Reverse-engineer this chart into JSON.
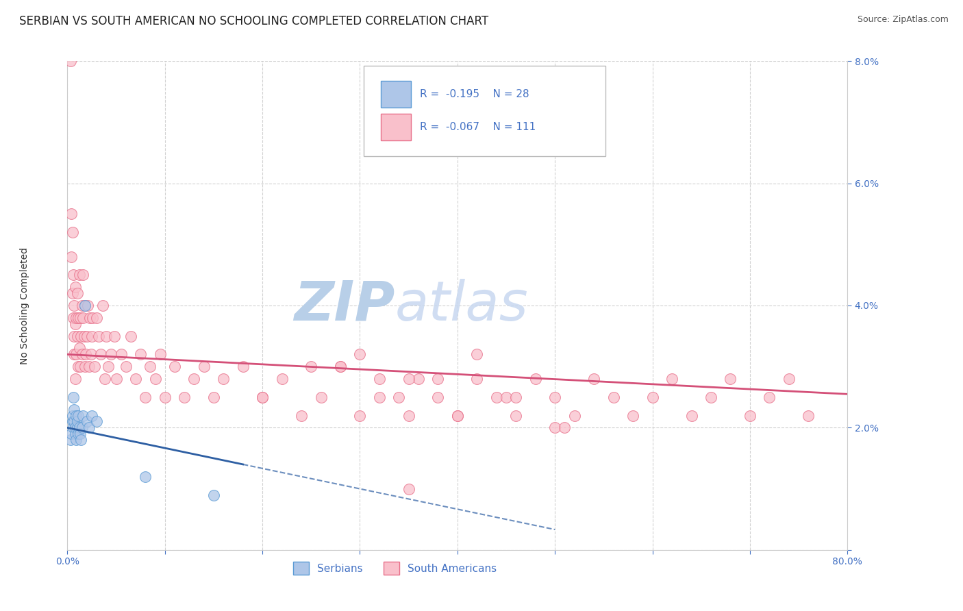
{
  "title": "SERBIAN VS SOUTH AMERICAN NO SCHOOLING COMPLETED CORRELATION CHART",
  "source_text": "Source: ZipAtlas.com",
  "ylabel": "No Schooling Completed",
  "xlim": [
    0.0,
    0.8
  ],
  "ylim": [
    0.0,
    0.08
  ],
  "xticks": [
    0.0,
    0.1,
    0.2,
    0.3,
    0.4,
    0.5,
    0.6,
    0.7,
    0.8
  ],
  "yticks": [
    0.0,
    0.02,
    0.04,
    0.06,
    0.08
  ],
  "xtick_labels": [
    "0.0%",
    "",
    "",
    "",
    "",
    "",
    "",
    "",
    "80.0%"
  ],
  "ytick_labels_right": [
    "",
    "2.0%",
    "4.0%",
    "6.0%",
    "8.0%"
  ],
  "serbian_color": "#aec6e8",
  "south_american_color": "#f9c0cb",
  "serbian_edge_color": "#5b9bd5",
  "south_american_edge_color": "#e8708a",
  "trend_serbian_color": "#2e5fa3",
  "trend_sa_color": "#d45078",
  "watermark_color": "#cddaee",
  "serbian_r": -0.195,
  "serbian_n": 28,
  "sa_r": -0.067,
  "sa_n": 111,
  "sa_trend_y0": 0.032,
  "sa_trend_y1": 0.0255,
  "ser_trend_y0": 0.02,
  "ser_trend_solid_x1": 0.18,
  "ser_trend_dash_x1": 0.5,
  "serbian_x": [
    0.003,
    0.004,
    0.005,
    0.005,
    0.006,
    0.006,
    0.007,
    0.007,
    0.008,
    0.008,
    0.009,
    0.009,
    0.01,
    0.01,
    0.011,
    0.011,
    0.012,
    0.013,
    0.014,
    0.015,
    0.016,
    0.018,
    0.02,
    0.022,
    0.025,
    0.03,
    0.08,
    0.15
  ],
  "serbian_y": [
    0.018,
    0.019,
    0.021,
    0.022,
    0.02,
    0.025,
    0.021,
    0.023,
    0.019,
    0.02,
    0.018,
    0.022,
    0.02,
    0.021,
    0.019,
    0.022,
    0.02,
    0.019,
    0.018,
    0.02,
    0.022,
    0.04,
    0.021,
    0.02,
    0.022,
    0.021,
    0.012,
    0.009
  ],
  "sa_x": [
    0.003,
    0.004,
    0.004,
    0.005,
    0.005,
    0.006,
    0.006,
    0.007,
    0.007,
    0.007,
    0.008,
    0.008,
    0.008,
    0.009,
    0.009,
    0.01,
    0.01,
    0.011,
    0.011,
    0.012,
    0.012,
    0.013,
    0.013,
    0.014,
    0.015,
    0.015,
    0.016,
    0.016,
    0.017,
    0.018,
    0.018,
    0.019,
    0.02,
    0.021,
    0.022,
    0.023,
    0.024,
    0.025,
    0.026,
    0.028,
    0.03,
    0.032,
    0.034,
    0.036,
    0.038,
    0.04,
    0.042,
    0.045,
    0.048,
    0.05,
    0.055,
    0.06,
    0.065,
    0.07,
    0.075,
    0.08,
    0.085,
    0.09,
    0.095,
    0.1,
    0.11,
    0.12,
    0.13,
    0.14,
    0.15,
    0.16,
    0.18,
    0.2,
    0.22,
    0.24,
    0.26,
    0.28,
    0.3,
    0.32,
    0.34,
    0.35,
    0.36,
    0.38,
    0.4,
    0.42,
    0.44,
    0.46,
    0.48,
    0.5,
    0.52,
    0.54,
    0.56,
    0.58,
    0.6,
    0.62,
    0.64,
    0.66,
    0.68,
    0.7,
    0.72,
    0.74,
    0.76,
    0.3,
    0.2,
    0.25,
    0.35,
    0.4,
    0.45,
    0.5,
    0.28,
    0.32,
    0.38,
    0.42,
    0.46,
    0.51,
    0.35
  ],
  "sa_y": [
    0.08,
    0.055,
    0.048,
    0.042,
    0.052,
    0.038,
    0.045,
    0.035,
    0.04,
    0.032,
    0.037,
    0.043,
    0.028,
    0.038,
    0.032,
    0.035,
    0.042,
    0.03,
    0.038,
    0.033,
    0.045,
    0.03,
    0.038,
    0.035,
    0.04,
    0.032,
    0.038,
    0.045,
    0.035,
    0.03,
    0.04,
    0.032,
    0.035,
    0.04,
    0.03,
    0.038,
    0.032,
    0.035,
    0.038,
    0.03,
    0.038,
    0.035,
    0.032,
    0.04,
    0.028,
    0.035,
    0.03,
    0.032,
    0.035,
    0.028,
    0.032,
    0.03,
    0.035,
    0.028,
    0.032,
    0.025,
    0.03,
    0.028,
    0.032,
    0.025,
    0.03,
    0.025,
    0.028,
    0.03,
    0.025,
    0.028,
    0.03,
    0.025,
    0.028,
    0.022,
    0.025,
    0.03,
    0.022,
    0.028,
    0.025,
    0.022,
    0.028,
    0.025,
    0.022,
    0.028,
    0.025,
    0.022,
    0.028,
    0.025,
    0.022,
    0.028,
    0.025,
    0.022,
    0.025,
    0.028,
    0.022,
    0.025,
    0.028,
    0.022,
    0.025,
    0.028,
    0.022,
    0.032,
    0.025,
    0.03,
    0.028,
    0.022,
    0.025,
    0.02,
    0.03,
    0.025,
    0.028,
    0.032,
    0.025,
    0.02,
    0.01
  ],
  "background_color": "#ffffff",
  "grid_color": "#cccccc",
  "title_fontsize": 12,
  "axis_label_fontsize": 10,
  "tick_fontsize": 10,
  "legend_fontsize": 11,
  "label_color": "#4472c4"
}
